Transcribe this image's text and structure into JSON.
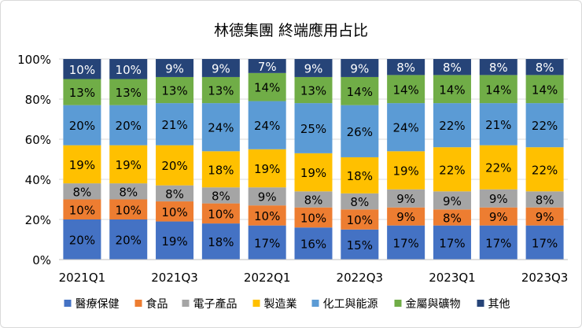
{
  "chart_data": {
    "type": "bar",
    "stacked": true,
    "title": "林德集團 終端應用占比",
    "xlabel": "",
    "ylabel": "",
    "ylim": [
      0,
      100
    ],
    "yticks": [
      "0%",
      "20%",
      "40%",
      "60%",
      "80%",
      "100%"
    ],
    "grid": true,
    "legend_position": "bottom",
    "categories": [
      "2021Q1",
      "2021Q2",
      "2021Q3",
      "2021Q4",
      "2022Q1",
      "2022Q2",
      "2022Q3",
      "2022Q4",
      "2023Q1",
      "2023Q2",
      "2023Q3"
    ],
    "xtick_labels_shown": [
      "2021Q1",
      "2021Q3",
      "2022Q1",
      "2022Q3",
      "2023Q1",
      "2023Q3"
    ],
    "series": [
      {
        "name": "醫療保健",
        "color": "#4472C4",
        "label_color": "#000000",
        "values": [
          20,
          20,
          19,
          18,
          17,
          16,
          15,
          17,
          17,
          17,
          17
        ]
      },
      {
        "name": "食品",
        "color": "#ED7D31",
        "label_color": "#000000",
        "values": [
          10,
          10,
          10,
          10,
          10,
          10,
          10,
          9,
          8,
          9,
          9
        ]
      },
      {
        "name": "電子產品",
        "color": "#A5A5A5",
        "label_color": "#000000",
        "values": [
          8,
          8,
          8,
          8,
          9,
          8,
          8,
          9,
          9,
          9,
          8
        ]
      },
      {
        "name": "製造業",
        "color": "#FFC000",
        "label_color": "#000000",
        "values": [
          19,
          19,
          20,
          18,
          19,
          19,
          18,
          19,
          22,
          22,
          22
        ]
      },
      {
        "name": "化工與能源",
        "color": "#5B9BD5",
        "label_color": "#000000",
        "values": [
          20,
          20,
          21,
          24,
          24,
          25,
          26,
          24,
          22,
          21,
          22
        ]
      },
      {
        "name": "金屬與礦物",
        "color": "#70AD47",
        "label_color": "#000000",
        "values": [
          13,
          13,
          13,
          13,
          14,
          13,
          14,
          14,
          14,
          14,
          14
        ]
      },
      {
        "name": "其他",
        "color": "#264478",
        "label_color": "#FFFFFF",
        "values": [
          10,
          10,
          9,
          9,
          7,
          9,
          9,
          8,
          8,
          8,
          8
        ]
      }
    ]
  }
}
